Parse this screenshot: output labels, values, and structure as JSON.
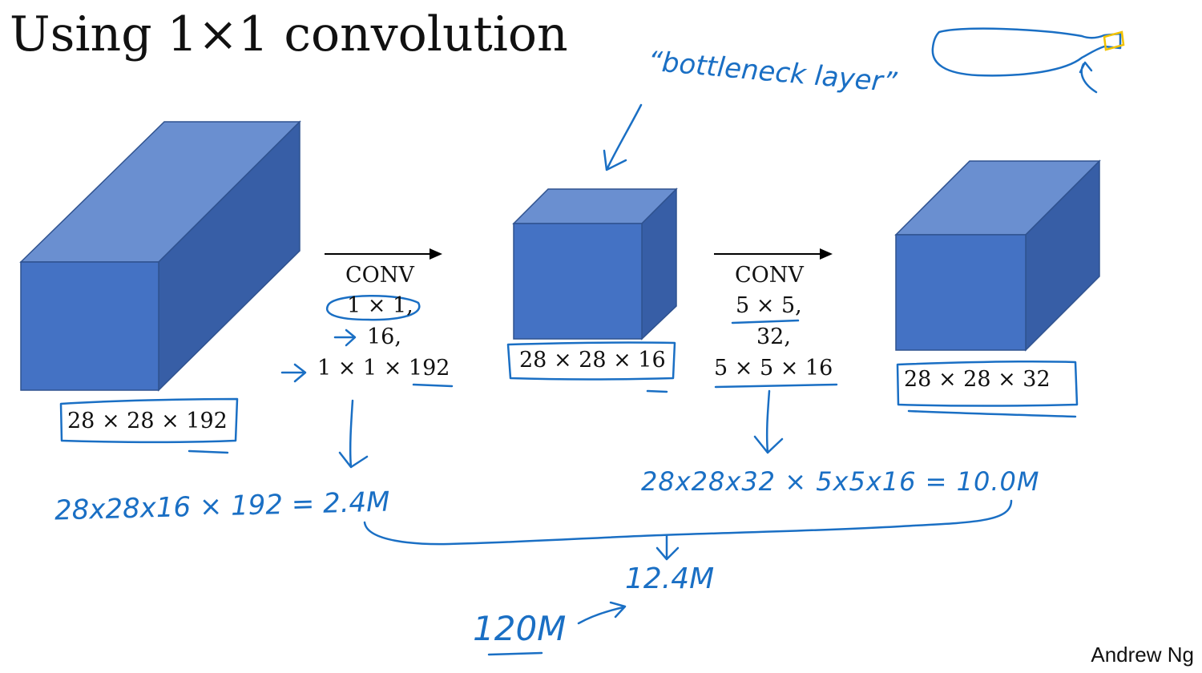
{
  "title": "Using 1×1 convolution",
  "author": "Andrew Ng",
  "colors": {
    "block_front": "#4472c4",
    "block_top": "#6a8fd0",
    "block_side": "#375ea6",
    "ink": "#1a6fc4",
    "highlight": "#f2c200"
  },
  "volumes": {
    "input": "28 × 28 × 192",
    "middle": "28 × 28 × 16",
    "output": "28 × 28 × 32"
  },
  "conv1": {
    "label": "CONV",
    "kernel": "1 × 1,",
    "filters": "16,",
    "filter_shape": "1 × 1 × 192"
  },
  "conv2": {
    "label": "CONV",
    "kernel": "5 × 5,",
    "filters": "32,",
    "filter_shape": "5 × 5 × 16"
  },
  "annotations": {
    "bottleneck": "“bottleneck layer”",
    "cost_first": "28x28x16 × 192 = 2.4M",
    "cost_second": "28x28x32 × 5x5x16 = 10.0M",
    "total": "12.4M",
    "naive": "120M"
  }
}
